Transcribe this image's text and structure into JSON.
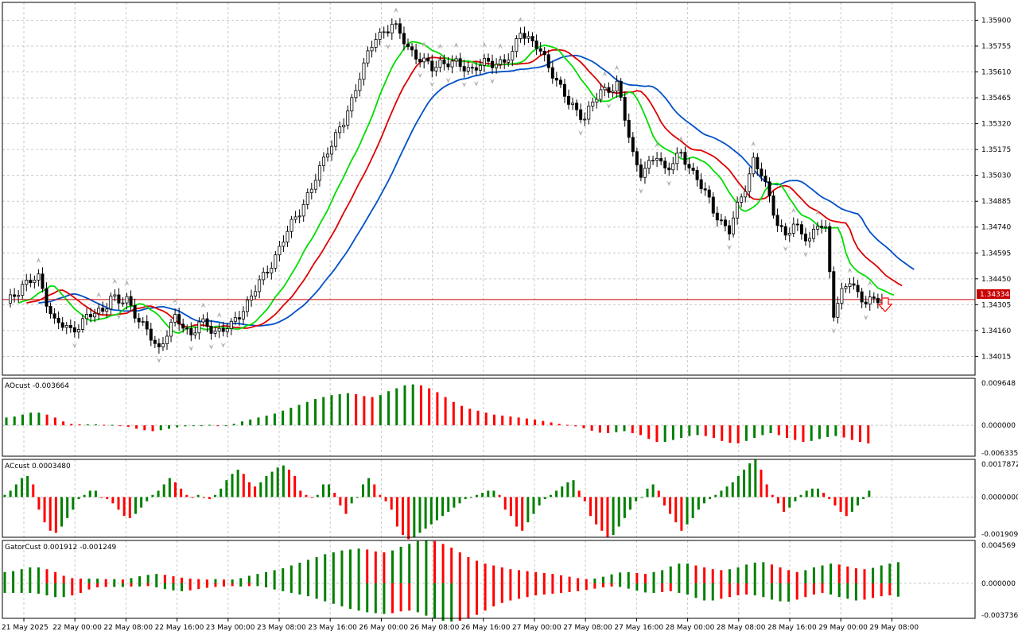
{
  "symbol_price_label": "1.34334",
  "sell_signal_icon": "red-down-arrow-icon",
  "colors": {
    "bull": "#008000",
    "bear": "#ff0000",
    "lips": "#00dd00",
    "teeth": "#dd0000",
    "jaw": "#0050c8",
    "grid": "#c8c8c8",
    "price_line": "#c80000"
  },
  "panels": {
    "main": {
      "y_ticks": [
        "1.35900",
        "1.35755",
        "1.35610",
        "1.35465",
        "1.35320",
        "1.35175",
        "1.35030",
        "1.34885",
        "1.34740",
        "1.34595",
        "1.34450",
        "1.34305",
        "1.34160",
        "1.34015"
      ],
      "y_values": [
        1.359,
        1.35755,
        1.3561,
        1.35465,
        1.3532,
        1.35175,
        1.3503,
        1.34885,
        1.3474,
        1.34595,
        1.3445,
        1.34305,
        1.3416,
        1.34015
      ],
      "ylim": [
        1.3391,
        1.36
      ]
    },
    "ao": {
      "label": "AOcust -0.003664",
      "y_ticks": [
        "0.009648",
        "0.000000",
        "-0.006335"
      ],
      "ylim": [
        -0.006335,
        0.009648
      ]
    },
    "ac": {
      "label": "ACcust 0.0003480",
      "y_ticks": [
        "0.0017872",
        "0.0000000",
        "-0.0019091"
      ],
      "ylim": [
        -0.0019091,
        0.0017872
      ]
    },
    "gator": {
      "label": "GatorCust 0.001912 -0.001249",
      "y_ticks": [
        "0.004569",
        "0.000000",
        "-0.003736"
      ],
      "ylim": [
        -0.003736,
        0.004569
      ]
    }
  },
  "x_axis_labels": [
    "21 May 2025",
    "22 May 00:00",
    "22 May 08:00",
    "22 May 16:00",
    "23 May 00:00",
    "23 May 08:00",
    "23 May 16:00",
    "26 May 00:00",
    "26 May 08:00",
    "26 May 16:00",
    "27 May 00:00",
    "27 May 08:00",
    "27 May 16:00",
    "28 May 00:00",
    "28 May 08:00",
    "28 May 16:00",
    "29 May 00:00",
    "29 May 08:00"
  ],
  "chart_data": {
    "type": "candlestick",
    "close_anchor": {
      "bar": [
        0,
        4,
        8,
        12,
        16,
        20,
        24,
        26,
        28,
        30,
        34,
        38,
        40,
        42,
        44,
        46,
        48,
        52,
        56,
        60,
        64,
        68,
        72,
        76,
        80,
        84,
        86,
        88,
        92,
        96,
        100,
        104,
        106,
        108,
        110,
        112,
        116,
        120,
        124,
        126,
        128,
        132,
        136,
        140,
        144,
        148,
        152,
        156,
        158,
        160,
        162,
        164,
        168,
        172,
        176,
        180,
        184,
        186,
        188,
        190,
        192,
        194,
        196,
        198,
        200,
        202,
        204,
        206,
        208,
        210,
        212,
        214,
        216,
        218
      ],
      "value": [
        1.343,
        1.3442,
        1.3445,
        1.3421,
        1.3416,
        1.3423,
        1.3428,
        1.3435,
        1.3431,
        1.3434,
        1.3418,
        1.3406,
        1.3415,
        1.3422,
        1.3419,
        1.3414,
        1.342,
        1.3416,
        1.3418,
        1.3432,
        1.3446,
        1.3462,
        1.348,
        1.3495,
        1.3518,
        1.3532,
        1.3545,
        1.356,
        1.358,
        1.3588,
        1.3575,
        1.3566,
        1.3563,
        1.3567,
        1.3566,
        1.3565,
        1.3563,
        1.3566,
        1.3567,
        1.357,
        1.3585,
        1.3575,
        1.3561,
        1.3543,
        1.3536,
        1.355,
        1.3554,
        1.3515,
        1.3505,
        1.3508,
        1.3514,
        1.3507,
        1.3514,
        1.3502,
        1.3483,
        1.3472,
        1.3497,
        1.3512,
        1.3503,
        1.349,
        1.3477,
        1.3469,
        1.3474,
        1.3472,
        1.3467,
        1.3475,
        1.3472,
        1.3427,
        1.3437,
        1.3443,
        1.3437,
        1.3433,
        1.3432,
        1.3433
      ]
    },
    "ao_values": [
      0.0016,
      0.0018,
      0.0022,
      0.0026,
      0.0026,
      0.0022,
      0.0016,
      0.0008,
      0.0003,
      0.0002,
      0.0002,
      0.0002,
      0.0001,
      0.0001,
      0.0,
      -0.0003,
      -0.0007,
      -0.001,
      -0.0012,
      -0.001,
      -0.0007,
      -0.0004,
      -0.0002,
      -0.0001,
      0.0,
      0.0001,
      0.0,
      0.0,
      0.0003,
      0.0008,
      0.0012,
      0.0016,
      0.002,
      0.0024,
      0.003,
      0.0036,
      0.0042,
      0.0048,
      0.0054,
      0.0058,
      0.0062,
      0.0064,
      0.0066,
      0.0064,
      0.006,
      0.0058,
      0.0062,
      0.007,
      0.0076,
      0.0082,
      0.0084,
      0.0082,
      0.0076,
      0.0068,
      0.0058,
      0.0048,
      0.004,
      0.0034,
      0.003,
      0.0026,
      0.0022,
      0.002,
      0.0018,
      0.0016,
      0.0014,
      0.0012,
      0.0009,
      0.0006,
      0.0003,
      0.0001,
      -0.0002,
      -0.0006,
      -0.0011,
      -0.0015,
      -0.0016,
      -0.0014,
      -0.0012,
      -0.0016,
      -0.002,
      -0.0028,
      -0.0034,
      -0.0034,
      -0.003,
      -0.0026,
      -0.0022,
      -0.002,
      -0.0022,
      -0.0026,
      -0.0032,
      -0.0036,
      -0.0037,
      -0.0032,
      -0.0026,
      -0.002,
      -0.0016,
      -0.002,
      -0.0026,
      -0.003,
      -0.0034,
      -0.0032,
      -0.0028,
      -0.0024,
      -0.0022,
      -0.0025,
      -0.003,
      -0.0034,
      -0.0037
    ],
    "ac_values": [
      0.0001,
      0.0003,
      0.0006,
      0.0009,
      0.001,
      0.0006,
      -0.0006,
      -0.0012,
      -0.0016,
      -0.0017,
      -0.0014,
      -0.001,
      -0.0006,
      -0.0001,
      0.0001,
      0.0003,
      0.0003,
      0.0,
      -0.0001,
      -0.0003,
      -0.0006,
      -0.0009,
      -0.001,
      -0.0008,
      -0.0005,
      -0.0002,
      0.0001,
      0.0003,
      0.0006,
      0.0009,
      0.0007,
      0.0004,
      0.0001,
      0.0,
      0.0001,
      0.0,
      -0.0001,
      0.0001,
      0.0004,
      0.0008,
      0.0011,
      0.0013,
      0.0011,
      0.0007,
      0.0005,
      0.0007,
      0.001,
      0.0012,
      0.0014,
      0.0015,
      0.0013,
      0.001,
      0.0003,
      0.0001,
      0.0,
      0.0001,
      0.0006,
      0.0006,
      0.0002,
      -0.0004,
      -0.0008,
      -0.0003,
      0.0,
      0.0006,
      0.0009,
      0.0006,
      0.0001,
      -0.0002,
      -0.0006,
      -0.0014,
      -0.0018,
      -0.002,
      -0.0019,
      -0.0017,
      -0.0015,
      -0.0013,
      -0.0011,
      -0.0009,
      -0.0007,
      -0.0005,
      -0.0003,
      -0.0001,
      0.0,
      0.0001,
      0.0002,
      0.0003,
      0.0003,
      0.0001,
      -0.0006,
      -0.0009,
      -0.0014,
      -0.0016,
      -0.0012,
      -0.0008,
      -0.0004,
      -0.0001,
      0.0001,
      0.0003,
      0.0005,
      0.0007,
      0.0008,
      0.0003,
      -0.0002,
      -0.0009,
      -0.0013,
      -0.0016,
      -0.0019,
      -0.0018,
      -0.0014,
      -0.001,
      -0.0006,
      -0.0002,
      0.0,
      0.0004,
      0.0006,
      0.0003,
      -0.0004,
      -0.0008,
      -0.0012,
      -0.0016,
      -0.0013,
      -0.001,
      -0.0006,
      -0.0003,
      -0.0001,
      0.0001,
      0.0003,
      0.0005,
      0.0007,
      0.001,
      0.0013,
      0.0016,
      0.0018,
      0.0013,
      0.0006,
      0.0001,
      -0.0003,
      -0.0007,
      -0.0005,
      -0.0002,
      0.0001,
      0.0003,
      0.0004,
      0.0004,
      0.0002,
      -0.0001,
      -0.0004,
      -0.0007,
      -0.0009,
      -0.0007,
      -0.0004,
      -0.0001,
      0.0003
    ]
  }
}
